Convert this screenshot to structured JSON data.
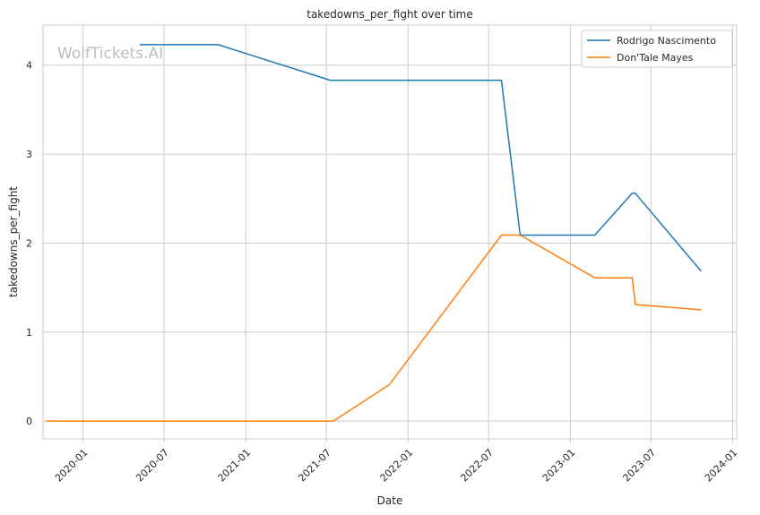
{
  "watermark": "WolfTickets.AI",
  "chart_data": {
    "type": "line",
    "title": "takedowns_per_fight over time",
    "xlabel": "Date",
    "ylabel": "takedowns_per_fight",
    "xlim": [
      "2019-10-03",
      "2024-01-10"
    ],
    "ylim": [
      -0.2,
      4.45
    ],
    "x_ticks": [
      "2020-01",
      "2020-07",
      "2021-01",
      "2021-07",
      "2022-01",
      "2022-07",
      "2023-01",
      "2023-07",
      "2024-01"
    ],
    "x_tick_labels": [
      "2020-01",
      "2020-07",
      "2021-01",
      "2021-07",
      "2022-01",
      "2022-07",
      "2023-01",
      "2023-07",
      "2024-01"
    ],
    "y_ticks": [
      0,
      1,
      2,
      3,
      4
    ],
    "y_tick_labels": [
      "0",
      "1",
      "2",
      "3",
      "4"
    ],
    "grid": true,
    "legend_position": "top-right",
    "series": [
      {
        "name": "Rodrigo Nascimento",
        "color": "#1f77b4",
        "points": [
          {
            "x": "2020-05-09",
            "y": 4.23
          },
          {
            "x": "2020-10-31",
            "y": 4.23
          },
          {
            "x": "2021-07-10",
            "y": 3.83
          },
          {
            "x": "2022-07-30",
            "y": 3.83
          },
          {
            "x": "2022-09-10",
            "y": 2.09
          },
          {
            "x": "2023-02-25",
            "y": 2.09
          },
          {
            "x": "2023-05-20",
            "y": 2.56
          },
          {
            "x": "2023-05-27",
            "y": 2.56
          },
          {
            "x": "2023-10-21",
            "y": 1.69
          }
        ]
      },
      {
        "name": "Don'Tale Mayes",
        "color": "#ff7f0e",
        "points": [
          {
            "x": "2019-10-12",
            "y": 0
          },
          {
            "x": "2021-07-17",
            "y": 0
          },
          {
            "x": "2021-11-20",
            "y": 0.41
          },
          {
            "x": "2022-07-30",
            "y": 2.09
          },
          {
            "x": "2022-09-10",
            "y": 2.09
          },
          {
            "x": "2023-02-25",
            "y": 1.61
          },
          {
            "x": "2023-05-20",
            "y": 1.61
          },
          {
            "x": "2023-05-27",
            "y": 1.31
          },
          {
            "x": "2023-10-21",
            "y": 1.25
          }
        ]
      }
    ]
  }
}
